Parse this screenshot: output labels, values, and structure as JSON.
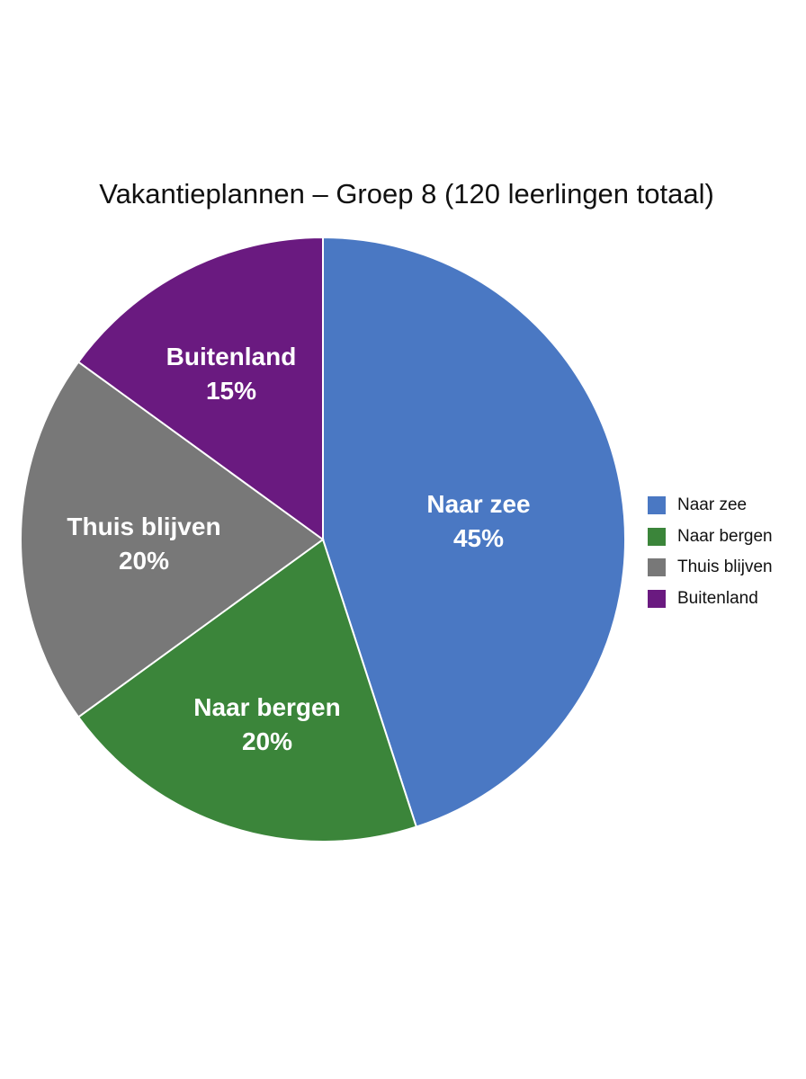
{
  "chart_data": {
    "type": "pie",
    "title": "Vakantieplannen – Groep 8 (120 leerlingen totaal)",
    "start_angle": "12 o'clock",
    "direction": "clockwise",
    "legend_position": "right",
    "slices": [
      {
        "label": "Naar zee",
        "value": 45,
        "display": "45%",
        "color": "#4a78c3"
      },
      {
        "label": "Naar bergen",
        "value": 20,
        "display": "20%",
        "color": "#3b853a"
      },
      {
        "label": "Thuis blijven",
        "value": 20,
        "display": "20%",
        "color": "#787878"
      },
      {
        "label": "Buitenland",
        "value": 15,
        "display": "15%",
        "color": "#6a1a80"
      }
    ]
  }
}
